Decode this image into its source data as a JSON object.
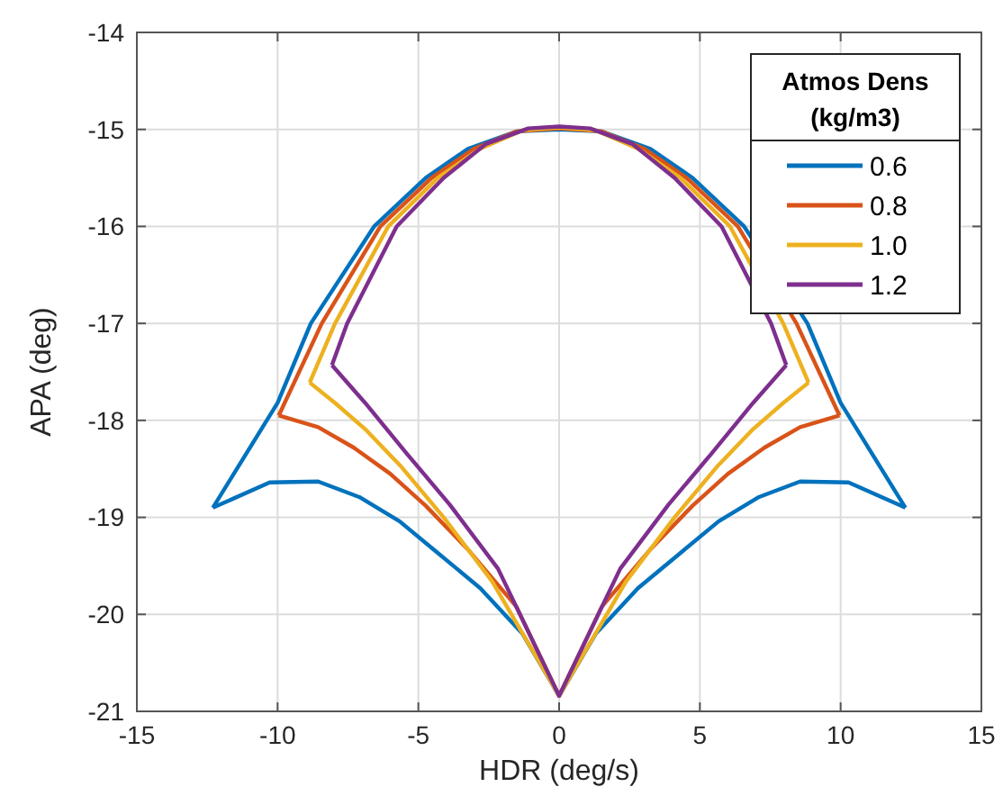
{
  "chart_data": {
    "type": "line",
    "xlabel": "HDR (deg/s)",
    "ylabel": "APA (deg)",
    "legend_title": "Atmos Dens\n(kg/m3)",
    "xlim": [
      -15,
      15
    ],
    "ylim": [
      -21,
      -14
    ],
    "xticks": [
      -15,
      -10,
      -5,
      0,
      5,
      10,
      15
    ],
    "yticks": [
      -21,
      -20,
      -19,
      -18,
      -17,
      -16,
      -15,
      -14
    ],
    "grid": true,
    "legend": "top right",
    "line_style": "solid",
    "marker": "none",
    "series": [
      {
        "name": "0.6",
        "color": "#0072bd",
        "x": [
          -12.3,
          -10.28,
          -8.56,
          -7.1,
          -5.67,
          -4.42,
          -2.8,
          -1.3,
          0,
          1.3,
          2.8,
          4.42,
          5.67,
          7.1,
          8.56,
          10.28,
          12.3
        ],
        "values": [
          -18.9,
          -18.64,
          -18.63,
          -18.79,
          -19.04,
          -19.34,
          -19.73,
          -20.2,
          -20.84,
          -20.2,
          -19.73,
          -19.34,
          -19.04,
          -18.79,
          -18.63,
          -18.64,
          -18.9
        ]
      },
      {
        "color": "#0072bd",
        "x": [
          -12.3,
          -10.0,
          -8.82,
          -6.57,
          -4.74,
          -3.24,
          -1.5,
          0,
          1.5,
          3.24,
          4.74,
          6.57,
          8.82,
          10.0,
          12.3
        ],
        "values": [
          -18.9,
          -17.82,
          -17.0,
          -16.0,
          -15.5,
          -15.2,
          -15.02,
          -15.0,
          -15.02,
          -15.2,
          -15.5,
          -16.0,
          -17.0,
          -17.82,
          -18.9
        ]
      },
      {
        "name": "0.8",
        "color": "#d95319",
        "x": [
          -9.96,
          -8.56,
          -7.3,
          -6.0,
          -4.74,
          -3.24,
          -1.52,
          0,
          1.52,
          3.24,
          4.74,
          6.0,
          7.3,
          8.56,
          9.96
        ],
        "values": [
          -17.95,
          -18.07,
          -18.28,
          -18.55,
          -18.88,
          -19.33,
          -19.92,
          -20.84,
          -19.92,
          -19.33,
          -18.88,
          -18.55,
          -18.28,
          -18.07,
          -17.95
        ]
      },
      {
        "color": "#d95319",
        "x": [
          -9.96,
          -8.43,
          -6.35,
          -4.53,
          -3.03,
          -1.5,
          0,
          1.5,
          3.03,
          4.53,
          6.35,
          8.43,
          9.96
        ],
        "values": [
          -17.95,
          -17.0,
          -16.0,
          -15.5,
          -15.2,
          -15.02,
          -14.99,
          -15.02,
          -15.2,
          -15.5,
          -16.0,
          -17.0,
          -17.95
        ]
      },
      {
        "name": "1.0",
        "color": "#edb120",
        "x": [
          -8.86,
          -7.96,
          -6.89,
          -5.6,
          -4.1,
          -2.38,
          0,
          2.38,
          4.1,
          5.6,
          6.89,
          7.96,
          8.86
        ],
        "values": [
          -17.61,
          -17.82,
          -18.09,
          -18.48,
          -19.0,
          -19.66,
          -20.84,
          -19.66,
          -19.0,
          -18.48,
          -18.09,
          -17.82,
          -17.61
        ]
      },
      {
        "color": "#edb120",
        "x": [
          -8.86,
          -7.96,
          -6.07,
          -4.31,
          -2.81,
          -1.3,
          0,
          1.3,
          2.81,
          4.31,
          6.07,
          7.96,
          8.86
        ],
        "values": [
          -17.61,
          -17.0,
          -16.0,
          -15.5,
          -15.2,
          -15.01,
          -14.98,
          -15.01,
          -15.2,
          -15.5,
          -16.0,
          -17.0,
          -17.61
        ]
      },
      {
        "name": "1.2",
        "color": "#7e2f8e",
        "x": [
          -8.07,
          -6.89,
          -5.39,
          -3.88,
          -2.17,
          0,
          2.17,
          3.88,
          5.39,
          6.89,
          8.07
        ],
        "values": [
          -17.43,
          -17.82,
          -18.35,
          -18.87,
          -19.53,
          -20.84,
          -19.53,
          -18.87,
          -18.35,
          -17.82,
          -17.43
        ]
      },
      {
        "color": "#7e2f8e",
        "x": [
          -8.07,
          -7.53,
          -5.77,
          -4.1,
          -2.6,
          -1.1,
          0,
          1.1,
          2.6,
          4.1,
          5.77,
          7.53,
          8.07
        ],
        "values": [
          -17.43,
          -17.0,
          -16.0,
          -15.5,
          -15.15,
          -14.99,
          -14.97,
          -14.99,
          -15.15,
          -15.5,
          -16.0,
          -17.0,
          -17.43
        ]
      }
    ]
  }
}
